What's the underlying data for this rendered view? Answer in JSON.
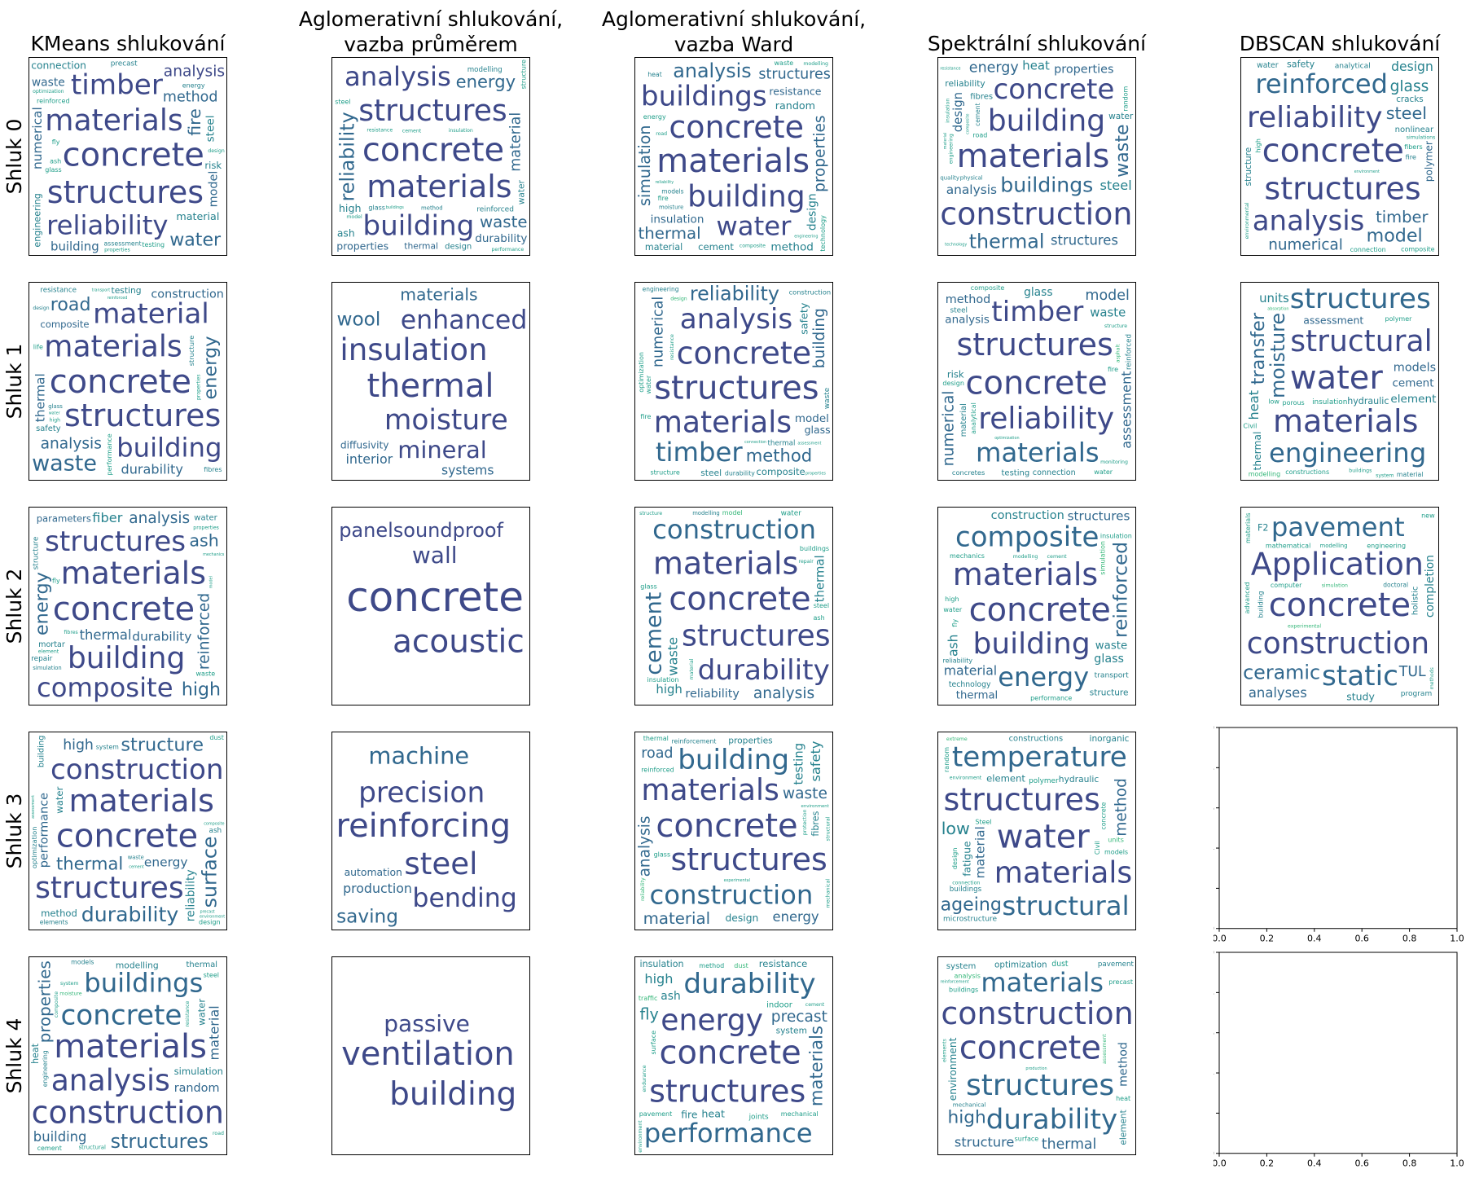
{
  "columns": [
    {
      "title": "KMeans shlukování"
    },
    {
      "title": "Aglomerativní shlukování,\nvazba průměrem"
    },
    {
      "title": "Aglomerativní shlukování,\nvazba Ward"
    },
    {
      "title": "Spektrální shlukování"
    },
    {
      "title": "DBSCAN shlukování"
    }
  ],
  "rows": [
    {
      "label": "Shluk 0"
    },
    {
      "label": "Shluk 1"
    },
    {
      "label": "Shluk 2"
    },
    {
      "label": "Shluk 3"
    },
    {
      "label": "Shluk 4"
    }
  ],
  "chart_data": {
    "type": "wordcloud-grid",
    "palette": [
      "#440154",
      "#482878",
      "#3e4989",
      "#31688e",
      "#26828e",
      "#1f9e89",
      "#35b779",
      "#6ece58",
      "#b5de2b",
      "#fde725"
    ],
    "empty_axes": {
      "xlim": [
        0,
        1
      ],
      "ylim": [
        0,
        1
      ],
      "xticks": [
        "0.0",
        "0.2",
        "0.4",
        "0.6",
        "0.8",
        "1.0"
      ],
      "yticks": [
        "0.0",
        "0.2",
        "0.4",
        "0.6",
        "0.8",
        "1.0"
      ]
    },
    "clouds": [
      [
        {
          "words": [
            "concrete",
            "structures",
            "materials",
            "timber",
            "reliability",
            "analysis",
            "method",
            "methods",
            "numerical",
            "model",
            "water",
            "fire",
            "building",
            "waste",
            "material",
            "risk",
            "steel",
            "connection",
            "engineering",
            "assessment",
            "precast",
            "energy",
            "glass",
            "testing",
            "fly",
            "ash",
            "reinforced",
            "optimization",
            "design",
            "properties"
          ]
        },
        {
          "words": [
            "concrete",
            "materials",
            "structures",
            "building",
            "analysis",
            "reliability",
            "material",
            "energy",
            "waste",
            "composite",
            "durability",
            "properties",
            "construction",
            "thermal",
            "high",
            "reinforced",
            "water",
            "ash",
            "modelling",
            "design",
            "method",
            "glass",
            "steel",
            "insulation",
            "cement",
            "performance",
            "resistance",
            "buildings",
            "model",
            "structure"
          ]
        },
        {
          "words": [
            "materials",
            "concrete",
            "building",
            "buildings",
            "water",
            "analysis",
            "structures",
            "construction",
            "thermal",
            "properties",
            "insulation",
            "resistance",
            "simulation",
            "design",
            "random",
            "cement",
            "method",
            "models",
            "material",
            "heat",
            "moisture",
            "waste",
            "energy",
            "fire",
            "technology",
            "composite",
            "road",
            "reliability",
            "engineering",
            "modelling"
          ]
        },
        {
          "words": [
            "materials",
            "construction",
            "building",
            "concrete",
            "buildings",
            "thermal",
            "energy",
            "structures",
            "analysis",
            "properties",
            "waste",
            "simulation",
            "design",
            "reliability",
            "steel",
            "heat",
            "water",
            "cement",
            "physical",
            "fibres",
            "quality",
            "material",
            "road",
            "composite",
            "random",
            "engineering",
            "technology",
            "insulation",
            "resistance",
            "experimental"
          ]
        },
        {
          "words": [
            "concrete",
            "structures",
            "reliability",
            "analysis",
            "reinforced",
            "numerical",
            "model",
            "steel",
            "timber",
            "asphalt",
            "monitoring",
            "polymer",
            "glass",
            "cracks",
            "design",
            "safety",
            "nonlinear",
            "analytical",
            "structure",
            "water",
            "fire",
            "fibers",
            "composite",
            "simulations",
            "connection",
            "high",
            "environment",
            "environmental",
            "experimental"
          ]
        }
      ],
      [
        {
          "words": [
            "concrete",
            "structures",
            "materials",
            "material",
            "building",
            "analysis",
            "energy",
            "waste",
            "thermal",
            "construction",
            "road",
            "durability",
            "composite",
            "testing",
            "safety",
            "optimization",
            "structure",
            "reinforcement",
            "resistance",
            "design",
            "glass",
            "fibres",
            "performance",
            "properties",
            "high",
            "transport",
            "life",
            "technology",
            "reinforced",
            "water"
          ]
        },
        {
          "words": [
            "thermal",
            "insulation",
            "moisture",
            "enhanced",
            "mineral",
            "materials",
            "wool",
            "interior",
            "systems",
            "diffusivity"
          ]
        },
        {
          "words": [
            "structures",
            "concrete",
            "materials",
            "analysis",
            "timber",
            "reliability",
            "numerical",
            "method",
            "methods",
            "building",
            "model",
            "glass",
            "material",
            "steel",
            "safety",
            "composite",
            "construction",
            "engineering",
            "thermal",
            "durability",
            "waste",
            "fire",
            "structure",
            "optimization",
            "resistance",
            "water",
            "connection",
            "assessment",
            "properties",
            "design"
          ]
        },
        {
          "words": [
            "concrete",
            "structures",
            "reliability",
            "timber",
            "materials",
            "numerical",
            "model",
            "building",
            "methods",
            "method",
            "analysis",
            "assessment",
            "waste",
            "glass",
            "material",
            "risk",
            "concretes",
            "connection",
            "reinforced",
            "testing",
            "steel",
            "water",
            "composite",
            "optimization",
            "monitoring",
            "design",
            "structure",
            "analytical",
            "fire",
            "asphalt"
          ]
        },
        {
          "words": [
            "water",
            "materials",
            "structural",
            "structures",
            "engineering",
            "moisture",
            "transfer",
            "temperature",
            "diffusion",
            "models",
            "cement",
            "assessment",
            "insulating",
            "environment",
            "heat",
            "units",
            "element",
            "thermal",
            "hydraulic",
            "material",
            "insulation",
            "porous",
            "polymer",
            "constructions",
            "system",
            "Civil",
            "low",
            "buildings",
            "modelling",
            "absorption"
          ]
        }
      ],
      [
        {
          "words": [
            "concrete",
            "materials",
            "building",
            "structures",
            "composite",
            "reinforced",
            "energy",
            "thermal",
            "durability",
            "analysis",
            "high",
            "ash",
            "parameters",
            "cement",
            "fiber",
            "structure",
            "insulation",
            "mortar",
            "simulation",
            "water",
            "repair",
            "element",
            "fibres",
            "waste",
            "fly",
            "properties",
            "mechanics",
            "model",
            "performance",
            "reliability"
          ]
        },
        {
          "words": [
            "concrete",
            "acoustic",
            "wall",
            "panelsoundproof"
          ]
        },
        {
          "words": [
            "concrete",
            "materials",
            "structures",
            "durability",
            "construction",
            "analysis",
            "composite",
            "cement",
            "performance",
            "reliability",
            "reinforced",
            "building",
            "high",
            "energy",
            "waste",
            "thermal",
            "properties",
            "transport",
            "modelling",
            "simulation",
            "water",
            "buildings",
            "structure",
            "glass",
            "ash",
            "material",
            "steel",
            "repair",
            "insulation",
            "model"
          ]
        },
        {
          "words": [
            "concrete",
            "materials",
            "building",
            "composite",
            "energy",
            "analysis",
            "durability",
            "properties",
            "structures",
            "reinforced",
            "thermal",
            "material",
            "construction",
            "waste",
            "ash",
            "glass",
            "reliability",
            "transport",
            "structure",
            "technology",
            "cement",
            "fly",
            "mechanics",
            "modelling",
            "insulation",
            "high",
            "water",
            "performance",
            "simulation"
          ]
        },
        {
          "words": [
            "concrete",
            "Application",
            "construction",
            "static",
            "pavement",
            "ceramic",
            "material",
            "analyses",
            "workplace",
            "equipment",
            "TUL",
            "study",
            "partnership",
            "completion",
            "specialized",
            "program",
            "building",
            "doctoral",
            "F2",
            "holistic",
            "modelling",
            "engineering",
            "mathematical",
            "computer",
            "advanced",
            "new",
            "methods",
            "materials",
            "experimental",
            "simulation"
          ]
        }
      ],
      [
        {
          "words": [
            "concrete",
            "materials",
            "structures",
            "construction",
            "durability",
            "surface",
            "structure",
            "thermal",
            "energy",
            "performance",
            "high",
            "buildings",
            "method",
            "reliability",
            "building",
            "water",
            "optimization",
            "elements",
            "waste",
            "system",
            "ash",
            "dust",
            "cement",
            "assessment",
            "composite",
            "precast",
            "design",
            "reinforcement",
            "environment",
            "mechanical"
          ]
        },
        {
          "words": [
            "reinforcing",
            "steel",
            "precision",
            "bending",
            "machine",
            "production",
            "saving",
            "automation"
          ]
        },
        {
          "words": [
            "concrete",
            "structures",
            "materials",
            "building",
            "construction",
            "waste",
            "road",
            "energy",
            "material",
            "analysis",
            "composite",
            "durability",
            "testing",
            "properties",
            "safety",
            "buildings",
            "performance",
            "design",
            "fibres",
            "reinforcement",
            "environment",
            "reinforced",
            "mechanical",
            "glass",
            "thermal",
            "protection",
            "experimental",
            "structural",
            "reliability",
            "insulation"
          ]
        },
        {
          "words": [
            "water",
            "structures",
            "materials",
            "temperature",
            "structural",
            "modelling",
            "reliability",
            "engineering",
            "material",
            "method",
            "ageing",
            "low",
            "element",
            "hydraulic",
            "constructions",
            "microstructure",
            "inorganic",
            "fatigue",
            "buildings",
            "concrete",
            "polymer",
            "design",
            "random",
            "Steel",
            "Civil",
            "connection",
            "models",
            "environment",
            "extreme",
            "units"
          ]
        }
      ],
      [
        {
          "words": [
            "materials",
            "construction",
            "analysis",
            "concrete",
            "buildings",
            "structures",
            "reliability",
            "building",
            "properties",
            "random",
            "insulation",
            "material",
            "simulation",
            "modelling",
            "thermal",
            "water",
            "energy",
            "engineering",
            "heat",
            "models",
            "structural",
            "cement",
            "system",
            "steel",
            "road",
            "resistance",
            "technology",
            "composite",
            "moisture",
            "experimental"
          ]
        },
        {
          "words": [
            "ventilation",
            "building",
            "passive"
          ]
        },
        {
          "words": [
            "concrete",
            "structures",
            "energy",
            "durability",
            "performance",
            "precast",
            "elements",
            "materials",
            "thermal",
            "finishing",
            "construction",
            "high",
            "fly",
            "ash",
            "heat",
            "resistance",
            "system",
            "fire",
            "insulation",
            "indoor",
            "joints",
            "mechanical",
            "surface",
            "endurance",
            "pavement",
            "method",
            "cement",
            "environment",
            "dust",
            "traffic"
          ]
        },
        {
          "words": [
            "concrete",
            "construction",
            "structures",
            "durability",
            "materials",
            "performance",
            "thermal",
            "structure",
            "energy",
            "method",
            "high",
            "building",
            "reliability",
            "optimization",
            "environment",
            "pavement",
            "system",
            "mechanical",
            "element",
            "dust",
            "reinforcement",
            "precast",
            "buildings",
            "surface",
            "production",
            "heat",
            "elements",
            "analysis",
            "assessment"
          ]
        }
      ]
    ]
  }
}
